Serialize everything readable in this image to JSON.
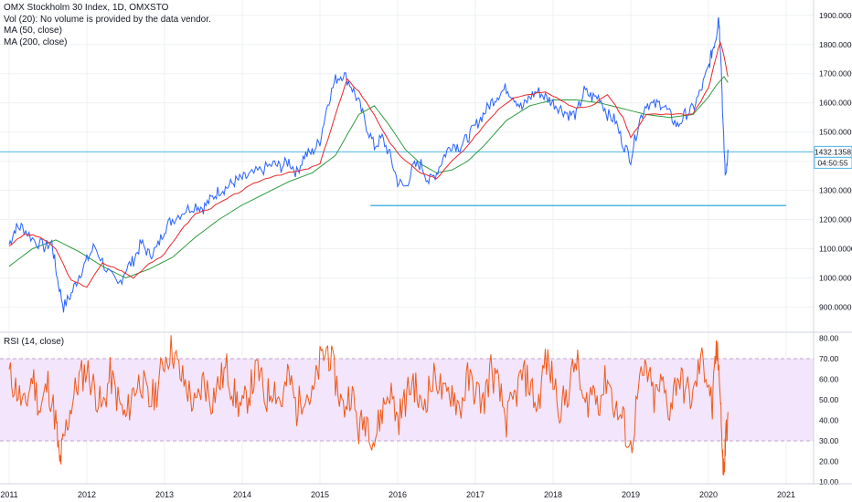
{
  "chart_data": [
    {
      "type": "line",
      "legend": {
        "title": "OMX Stockholm 30 Index, 1D, OMXSTO",
        "volume_note": "Vol (20): No volume is provided by the data vendor.",
        "ma50": "MA (50, close)",
        "ma200": "MA (200, close)"
      },
      "ylim": [
        820,
        1940
      ],
      "y_ticks": [
        "900.0000",
        "1000.0000",
        "1100.0000",
        "1200.0000",
        "1300.0000",
        "1400.0000",
        "1500.0000",
        "1600.0000",
        "1700.0000",
        "1800.0000",
        "1900.0000"
      ],
      "price_badge": "1432.1358",
      "time_badge": "04:50:55",
      "colors": {
        "price": "#2962ff",
        "ma50": "#e8262a",
        "ma200": "#2e9b3f",
        "hline": "#4fb6e3",
        "grid": "#eef0f3"
      },
      "hline_price": 1432,
      "support_line": {
        "value": 1248,
        "x_start": 2015.65,
        "x_end": 2021.0
      },
      "series": [
        {
          "name": "OMX Stockholm 30 Index",
          "x": [
            2011.0,
            2011.08,
            2011.17,
            2011.3,
            2011.45,
            2011.55,
            2011.62,
            2011.7,
            2011.8,
            2011.9,
            2012.0,
            2012.1,
            2012.25,
            2012.4,
            2012.5,
            2012.6,
            2012.7,
            2012.8,
            2012.9,
            2013.0,
            2013.1,
            2013.25,
            2013.4,
            2013.5,
            2013.6,
            2013.7,
            2013.8,
            2013.9,
            2014.0,
            2014.1,
            2014.25,
            2014.4,
            2014.5,
            2014.6,
            2014.7,
            2014.8,
            2014.9,
            2015.0,
            2015.1,
            2015.2,
            2015.3,
            2015.4,
            2015.5,
            2015.6,
            2015.7,
            2015.8,
            2015.9,
            2016.0,
            2016.1,
            2016.2,
            2016.3,
            2016.4,
            2016.5,
            2016.6,
            2016.7,
            2016.8,
            2016.9,
            2017.0,
            2017.1,
            2017.2,
            2017.3,
            2017.4,
            2017.5,
            2017.6,
            2017.7,
            2017.8,
            2017.9,
            2018.0,
            2018.1,
            2018.2,
            2018.3,
            2018.4,
            2018.5,
            2018.6,
            2018.7,
            2018.8,
            2018.9,
            2019.0,
            2019.1,
            2019.2,
            2019.3,
            2019.4,
            2019.5,
            2019.6,
            2019.7,
            2019.8,
            2019.9,
            2020.0,
            2020.05,
            2020.1,
            2020.13,
            2020.16,
            2020.19,
            2020.22,
            2020.25
          ],
          "y": [
            1115,
            1170,
            1175,
            1135,
            1105,
            1120,
            1000,
            900,
            945,
            1010,
            1060,
            1110,
            1030,
            970,
            1030,
            1060,
            1120,
            1080,
            1100,
            1170,
            1200,
            1230,
            1250,
            1240,
            1270,
            1300,
            1310,
            1330,
            1340,
            1350,
            1370,
            1390,
            1380,
            1400,
            1360,
            1420,
            1430,
            1470,
            1600,
            1680,
            1700,
            1660,
            1600,
            1520,
            1450,
            1480,
            1420,
            1330,
            1310,
            1380,
            1390,
            1330,
            1360,
            1420,
            1460,
            1450,
            1480,
            1520,
            1560,
            1600,
            1630,
            1650,
            1620,
            1580,
            1620,
            1640,
            1620,
            1600,
            1580,
            1560,
            1560,
            1640,
            1620,
            1620,
            1560,
            1540,
            1460,
            1410,
            1530,
            1600,
            1590,
            1600,
            1560,
            1520,
            1560,
            1580,
            1640,
            1720,
            1780,
            1830,
            1900,
            1760,
            1500,
            1340,
            1440
          ]
        },
        {
          "name": "MA (50, close)",
          "x": [
            2011.0,
            2011.2,
            2011.4,
            2011.6,
            2011.8,
            2012.0,
            2012.2,
            2012.4,
            2012.6,
            2012.8,
            2013.0,
            2013.2,
            2013.4,
            2013.6,
            2013.8,
            2014.0,
            2014.2,
            2014.4,
            2014.6,
            2014.8,
            2015.0,
            2015.2,
            2015.35,
            2015.5,
            2015.7,
            2015.9,
            2016.1,
            2016.3,
            2016.5,
            2016.7,
            2016.9,
            2017.1,
            2017.3,
            2017.5,
            2017.7,
            2017.9,
            2018.1,
            2018.3,
            2018.5,
            2018.7,
            2018.9,
            2019.0,
            2019.2,
            2019.4,
            2019.6,
            2019.8,
            2020.0,
            2020.1,
            2020.15,
            2020.2,
            2020.25
          ],
          "y": [
            1110,
            1150,
            1140,
            1100,
            990,
            970,
            1050,
            1030,
            1000,
            1050,
            1080,
            1160,
            1220,
            1240,
            1270,
            1300,
            1330,
            1350,
            1360,
            1370,
            1390,
            1560,
            1680,
            1640,
            1560,
            1460,
            1400,
            1360,
            1340,
            1400,
            1450,
            1520,
            1580,
            1620,
            1630,
            1640,
            1610,
            1580,
            1590,
            1630,
            1550,
            1480,
            1560,
            1560,
            1560,
            1560,
            1650,
            1760,
            1810,
            1760,
            1690
          ]
        },
        {
          "name": "MA (200, close)",
          "x": [
            2011.0,
            2011.3,
            2011.6,
            2011.9,
            2012.2,
            2012.5,
            2012.8,
            2013.1,
            2013.4,
            2013.7,
            2014.0,
            2014.3,
            2014.6,
            2014.9,
            2015.2,
            2015.5,
            2015.7,
            2015.9,
            2016.1,
            2016.3,
            2016.5,
            2016.7,
            2016.9,
            2017.1,
            2017.4,
            2017.7,
            2018.0,
            2018.3,
            2018.6,
            2018.9,
            2019.2,
            2019.5,
            2019.8,
            2020.0,
            2020.1,
            2020.2,
            2020.25
          ],
          "y": [
            1040,
            1100,
            1130,
            1090,
            1040,
            1000,
            1030,
            1070,
            1140,
            1200,
            1250,
            1290,
            1330,
            1360,
            1420,
            1560,
            1590,
            1520,
            1440,
            1390,
            1360,
            1370,
            1400,
            1450,
            1540,
            1590,
            1610,
            1610,
            1600,
            1580,
            1560,
            1550,
            1560,
            1620,
            1660,
            1690,
            1670
          ]
        }
      ]
    },
    {
      "type": "line",
      "title": "RSI (14, close)",
      "ylim": [
        10,
        82
      ],
      "y_ticks": [
        "10.00",
        "20.00",
        "30.00",
        "40.00",
        "50.00",
        "60.00",
        "70.00",
        "80.00"
      ],
      "band": [
        30,
        70
      ],
      "colors": {
        "rsi": "#ef5a1a",
        "band_fill": "#f3e5fb",
        "band_line": "#bfa6cf"
      },
      "series": [
        {
          "name": "RSI (14, close)",
          "x": [
            2011.0,
            2011.1,
            2011.2,
            2011.3,
            2011.4,
            2011.5,
            2011.6,
            2011.65,
            2011.7,
            2011.8,
            2011.9,
            2012.0,
            2012.1,
            2012.2,
            2012.3,
            2012.4,
            2012.5,
            2012.6,
            2012.7,
            2012.8,
            2012.9,
            2013.0,
            2013.1,
            2013.2,
            2013.3,
            2013.4,
            2013.5,
            2013.6,
            2013.7,
            2013.8,
            2013.9,
            2014.0,
            2014.1,
            2014.2,
            2014.3,
            2014.4,
            2014.5,
            2014.6,
            2014.7,
            2014.8,
            2014.9,
            2015.0,
            2015.1,
            2015.2,
            2015.3,
            2015.4,
            2015.5,
            2015.6,
            2015.7,
            2015.8,
            2015.9,
            2016.0,
            2016.1,
            2016.2,
            2016.3,
            2016.4,
            2016.5,
            2016.6,
            2016.7,
            2016.8,
            2016.9,
            2017.0,
            2017.1,
            2017.2,
            2017.3,
            2017.4,
            2017.5,
            2017.6,
            2017.7,
            2017.8,
            2017.9,
            2018.0,
            2018.1,
            2018.2,
            2018.3,
            2018.4,
            2018.5,
            2018.6,
            2018.7,
            2018.8,
            2018.9,
            2019.0,
            2019.1,
            2019.2,
            2019.3,
            2019.4,
            2019.5,
            2019.6,
            2019.7,
            2019.8,
            2019.9,
            2020.0,
            2020.05,
            2020.1,
            2020.15,
            2020.18,
            2020.2,
            2020.22,
            2020.25
          ],
          "y": [
            62,
            55,
            45,
            62,
            45,
            58,
            40,
            18,
            30,
            48,
            60,
            65,
            55,
            45,
            62,
            50,
            40,
            55,
            60,
            48,
            55,
            70,
            75,
            62,
            55,
            45,
            60,
            50,
            58,
            65,
            52,
            45,
            55,
            65,
            50,
            58,
            48,
            62,
            45,
            55,
            50,
            68,
            75,
            60,
            45,
            55,
            35,
            42,
            30,
            45,
            55,
            40,
            50,
            60,
            45,
            55,
            62,
            50,
            55,
            45,
            60,
            55,
            48,
            65,
            55,
            40,
            50,
            62,
            58,
            45,
            70,
            60,
            45,
            55,
            70,
            45,
            55,
            50,
            62,
            45,
            40,
            25,
            55,
            65,
            50,
            58,
            45,
            62,
            55,
            50,
            70,
            60,
            45,
            75,
            60,
            20,
            15,
            30,
            44
          ]
        }
      ]
    }
  ],
  "time_axis": {
    "labels": [
      "2011",
      "2012",
      "2013",
      "2014",
      "2015",
      "2016",
      "2017",
      "2018",
      "2019",
      "2020",
      "2021"
    ]
  }
}
